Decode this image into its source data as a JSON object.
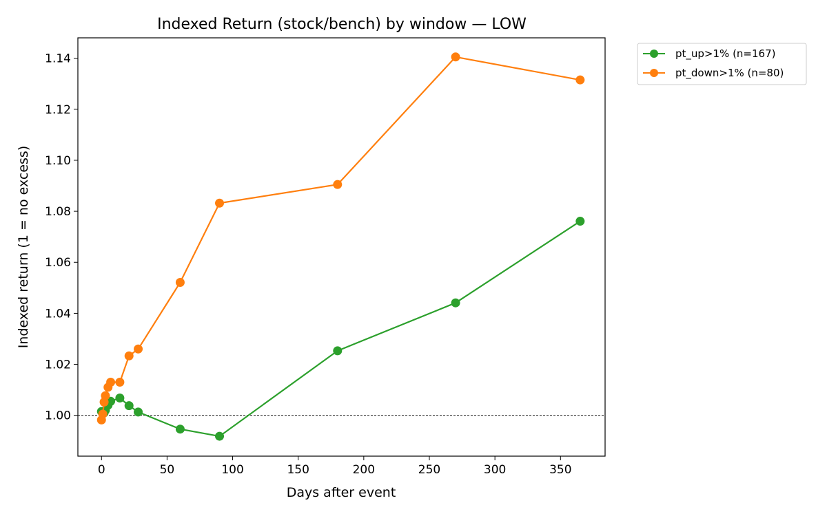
{
  "chart_data": {
    "type": "line",
    "title": "Indexed Return (stock/bench) by window — LOW",
    "xlabel": "Days after event",
    "ylabel": "Indexed return (1 = no excess)",
    "xlim": [
      -18,
      384
    ],
    "ylim": [
      0.984,
      1.148
    ],
    "x_ticks": [
      0,
      50,
      100,
      150,
      200,
      250,
      300,
      350
    ],
    "x_tick_labels": [
      "0",
      "50",
      "100",
      "150",
      "200",
      "250",
      "300",
      "350"
    ],
    "y_ticks": [
      1.0,
      1.02,
      1.04,
      1.06,
      1.08,
      1.1,
      1.12,
      1.14
    ],
    "y_tick_labels": [
      "1.00",
      "1.02",
      "1.04",
      "1.06",
      "1.08",
      "1.10",
      "1.12",
      "1.14"
    ],
    "grid": false,
    "reference_line": {
      "y": 1.0,
      "style": "dashed",
      "color": "#000000"
    },
    "legend": {
      "placement": "outside-top-right"
    },
    "x": [
      0,
      1,
      2,
      3,
      5,
      7,
      14,
      21,
      28,
      60,
      90,
      180,
      270,
      365
    ],
    "series": [
      {
        "name": "pt_up>1% (n=167)",
        "color": "#2ca02c",
        "values": [
          1.0015,
          1.0008,
          1.001,
          1.002,
          1.004,
          1.0055,
          1.0068,
          1.0038,
          1.0013,
          0.9946,
          0.9918,
          1.0253,
          1.0441,
          1.0761
        ]
      },
      {
        "name": "pt_down>1% (n=80)",
        "color": "#ff7f0e",
        "values": [
          0.9982,
          1.0005,
          1.0052,
          1.0077,
          1.011,
          1.013,
          1.013,
          1.0233,
          1.026,
          1.0521,
          1.0832,
          1.0905,
          1.1405,
          1.1315
        ]
      }
    ]
  }
}
